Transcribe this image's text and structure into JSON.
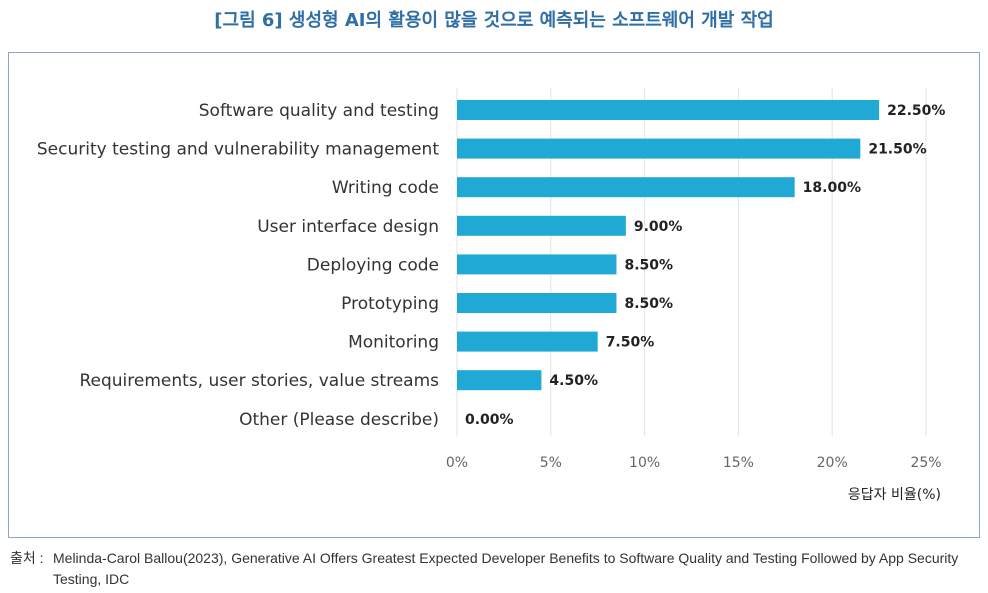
{
  "figure": {
    "title": "[그림 6] 생성형 AI의 활용이 많을 것으로 예측되는 소프트웨어 개발 작업",
    "source_prefix": "출처 :",
    "source_text": "Melinda-Carol Ballou(2023), Generative AI Offers Greatest Expected Developer Benefits to Software Quality and Testing Followed by App Security Testing, IDC"
  },
  "colors": {
    "bar": "#21a9d6",
    "grid": "#e3e3e3",
    "title": "#2f6fa6"
  },
  "chart_data": {
    "type": "bar",
    "orientation": "horizontal",
    "categories": [
      "Software quality and testing",
      "Security testing and vulnerability management",
      "Writing code",
      "User interface design",
      "Deploying code",
      "Prototyping",
      "Monitoring",
      "Requirements, user stories, value streams",
      "Other (Please describe)"
    ],
    "values": [
      22.5,
      21.5,
      18.0,
      9.0,
      8.5,
      8.5,
      7.5,
      4.5,
      0.0
    ],
    "data_labels": [
      "22.50%",
      "21.50%",
      "18.00%",
      "9.00%",
      "8.50%",
      "8.50%",
      "7.50%",
      "4.50%",
      "0.00%"
    ],
    "xlim": [
      0,
      25
    ],
    "xticks": [
      0,
      5,
      10,
      15,
      20,
      25
    ],
    "xtick_labels": [
      "0%",
      "5%",
      "10%",
      "15%",
      "20%",
      "25%"
    ],
    "xlabel": "응답자 비율(%)",
    "ylabel": "",
    "grid": true,
    "legend": "none"
  }
}
